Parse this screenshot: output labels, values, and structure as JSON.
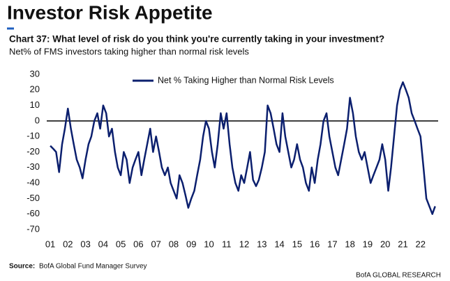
{
  "chart_data": {
    "type": "line",
    "title": "Investor Risk Appetite",
    "subtitle": "Chart 37: What level of risk do you think you're currently taking in your investment?",
    "description": "Net% of FMS investors taking higher than normal risk levels",
    "source_label": "Source:",
    "source": "BofA Global Fund Manager Survey",
    "credit": "BofA GLOBAL RESEARCH",
    "x": [
      2001,
      2001.17,
      2001.33,
      2001.5,
      2001.67,
      2001.83,
      2002,
      2002.17,
      2002.33,
      2002.5,
      2002.67,
      2002.83,
      2003,
      2003.17,
      2003.33,
      2003.5,
      2003.67,
      2003.83,
      2004,
      2004.17,
      2004.33,
      2004.5,
      2004.67,
      2004.83,
      2005,
      2005.17,
      2005.33,
      2005.5,
      2005.67,
      2005.83,
      2006,
      2006.17,
      2006.33,
      2006.5,
      2006.67,
      2006.83,
      2007,
      2007.17,
      2007.33,
      2007.5,
      2007.67,
      2007.83,
      2008,
      2008.17,
      2008.33,
      2008.5,
      2008.67,
      2008.83,
      2009,
      2009.17,
      2009.33,
      2009.5,
      2009.67,
      2009.83,
      2010,
      2010.17,
      2010.33,
      2010.5,
      2010.67,
      2010.83,
      2011,
      2011.17,
      2011.33,
      2011.5,
      2011.67,
      2011.83,
      2012,
      2012.17,
      2012.33,
      2012.5,
      2012.67,
      2012.83,
      2013,
      2013.17,
      2013.33,
      2013.5,
      2013.67,
      2013.83,
      2014,
      2014.17,
      2014.33,
      2014.5,
      2014.67,
      2014.83,
      2015,
      2015.17,
      2015.33,
      2015.5,
      2015.67,
      2015.83,
      2016,
      2016.17,
      2016.33,
      2016.5,
      2016.67,
      2016.83,
      2017,
      2017.17,
      2017.33,
      2017.5,
      2017.67,
      2017.83,
      2018,
      2018.17,
      2018.33,
      2018.5,
      2018.67,
      2018.83,
      2019,
      2019.17,
      2019.33,
      2019.5,
      2019.67,
      2019.83,
      2020,
      2020.17,
      2020.33,
      2020.5,
      2020.67,
      2020.83,
      2021,
      2021.17,
      2021.33,
      2021.5,
      2021.67,
      2021.83,
      2022,
      2022.17,
      2022.33,
      2022.5,
      2022.67,
      2022.83
    ],
    "series": [
      {
        "name": "Net % Taking Higher than Normal Risk Levels",
        "color": "#0b1f6e",
        "values": [
          -16,
          -18,
          -20,
          -33,
          -15,
          -5,
          8,
          -5,
          -15,
          -25,
          -30,
          -37,
          -25,
          -15,
          -10,
          0,
          5,
          -5,
          10,
          5,
          -10,
          -5,
          -20,
          -30,
          -35,
          -20,
          -25,
          -40,
          -30,
          -25,
          -20,
          -35,
          -25,
          -15,
          -5,
          -20,
          -10,
          -20,
          -30,
          -35,
          -30,
          -40,
          -45,
          -50,
          -35,
          -40,
          -48,
          -56,
          -50,
          -45,
          -35,
          -25,
          -10,
          0,
          -5,
          -20,
          -30,
          -15,
          5,
          -5,
          5,
          -15,
          -30,
          -40,
          -45,
          -35,
          -40,
          -30,
          -20,
          -38,
          -42,
          -38,
          -30,
          -20,
          10,
          5,
          -5,
          -15,
          -20,
          5,
          -10,
          -20,
          -30,
          -25,
          -15,
          -25,
          -30,
          -40,
          -45,
          -30,
          -40,
          -25,
          -15,
          0,
          5,
          -10,
          -20,
          -30,
          -35,
          -25,
          -15,
          -5,
          15,
          5,
          -10,
          -20,
          -25,
          -20,
          -30,
          -40,
          -35,
          -30,
          -25,
          -15,
          -25,
          -45,
          -30,
          -10,
          10,
          20,
          25,
          20,
          15,
          5,
          0,
          -5,
          -10,
          -30,
          -50,
          -55,
          -60,
          -55
        ]
      }
    ],
    "xlim": [
      2000.8,
      2023
    ],
    "xticks": [
      {
        "value": 2001,
        "label": "01"
      },
      {
        "value": 2002,
        "label": "02"
      },
      {
        "value": 2003,
        "label": "03"
      },
      {
        "value": 2004,
        "label": "04"
      },
      {
        "value": 2005,
        "label": "05"
      },
      {
        "value": 2006,
        "label": "06"
      },
      {
        "value": 2007,
        "label": "07"
      },
      {
        "value": 2008,
        "label": "08"
      },
      {
        "value": 2009,
        "label": "09"
      },
      {
        "value": 2010,
        "label": "10"
      },
      {
        "value": 2011,
        "label": "11"
      },
      {
        "value": 2012,
        "label": "12"
      },
      {
        "value": 2013,
        "label": "13"
      },
      {
        "value": 2014,
        "label": "14"
      },
      {
        "value": 2015,
        "label": "15"
      },
      {
        "value": 2016,
        "label": "16"
      },
      {
        "value": 2017,
        "label": "17"
      },
      {
        "value": 2018,
        "label": "18"
      },
      {
        "value": 2019,
        "label": "19"
      },
      {
        "value": 2020,
        "label": "20"
      },
      {
        "value": 2021,
        "label": "21"
      },
      {
        "value": 2022,
        "label": "22"
      }
    ],
    "ylim": [
      -70,
      30
    ],
    "yticks": [
      -70,
      -60,
      -50,
      -40,
      -30,
      -20,
      -10,
      0,
      10,
      20,
      30
    ],
    "zero_line": true,
    "legend": "upper left"
  }
}
